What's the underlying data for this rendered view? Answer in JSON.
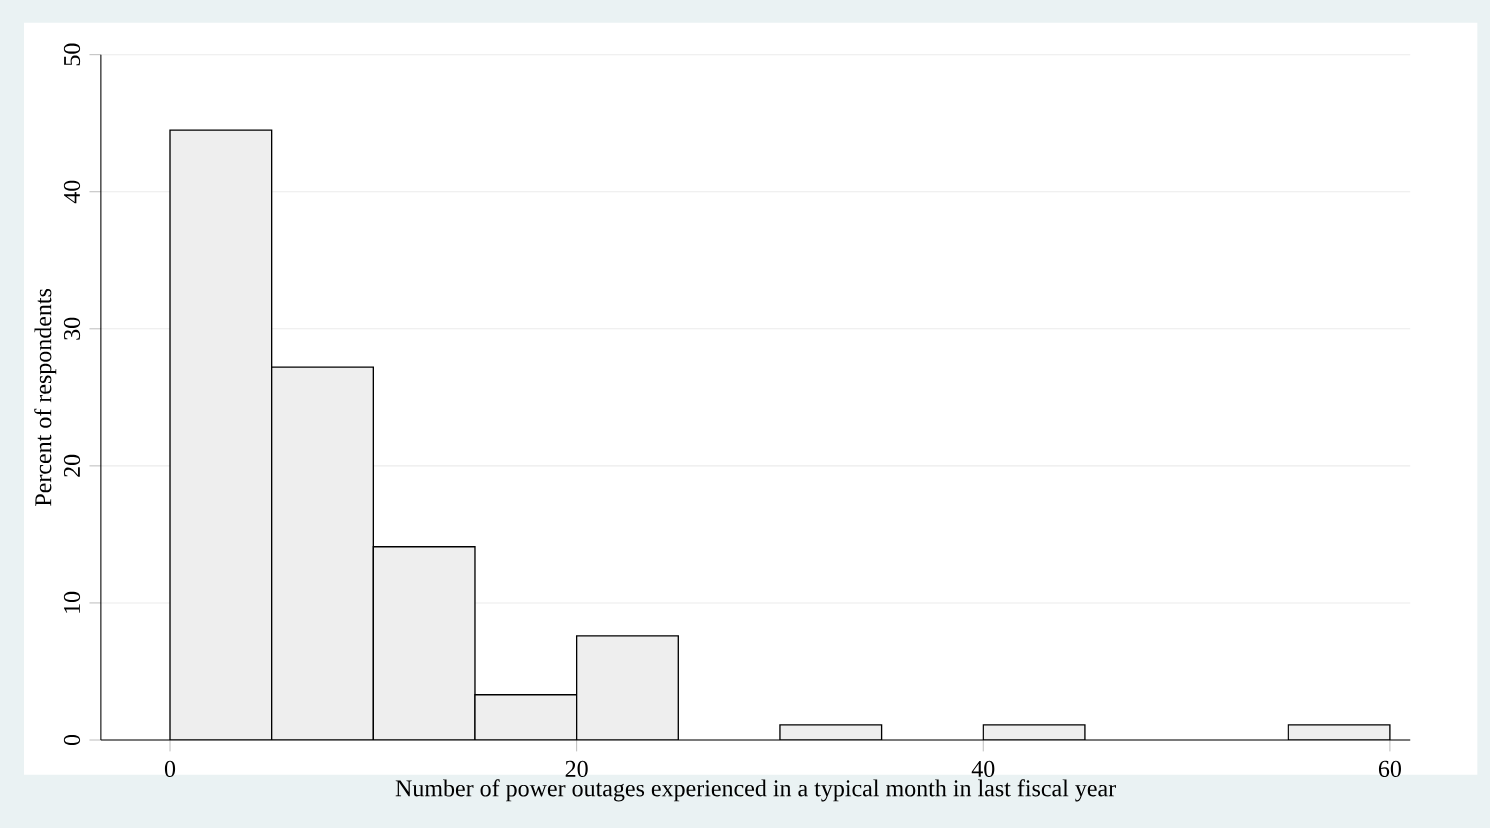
{
  "chart_data": {
    "type": "histogram",
    "xlabel": "Number of power outages experienced in a typical month in last fiscal year",
    "ylabel": "Percent of respondents",
    "bins": [
      0,
      5,
      10,
      15,
      20,
      25,
      30,
      35,
      40,
      45,
      50,
      55,
      60
    ],
    "values": [
      44.5,
      27.2,
      14.1,
      3.3,
      7.6,
      0,
      1.1,
      0,
      1.1,
      0,
      0,
      1.1
    ],
    "color": "#eeeeee",
    "xlim": [
      -3.4,
      61
    ],
    "ylim": [
      0,
      50
    ],
    "xticks": [
      0,
      20,
      40,
      60
    ],
    "yticks": [
      0,
      10,
      20,
      30,
      40,
      50
    ],
    "grid": "y"
  }
}
